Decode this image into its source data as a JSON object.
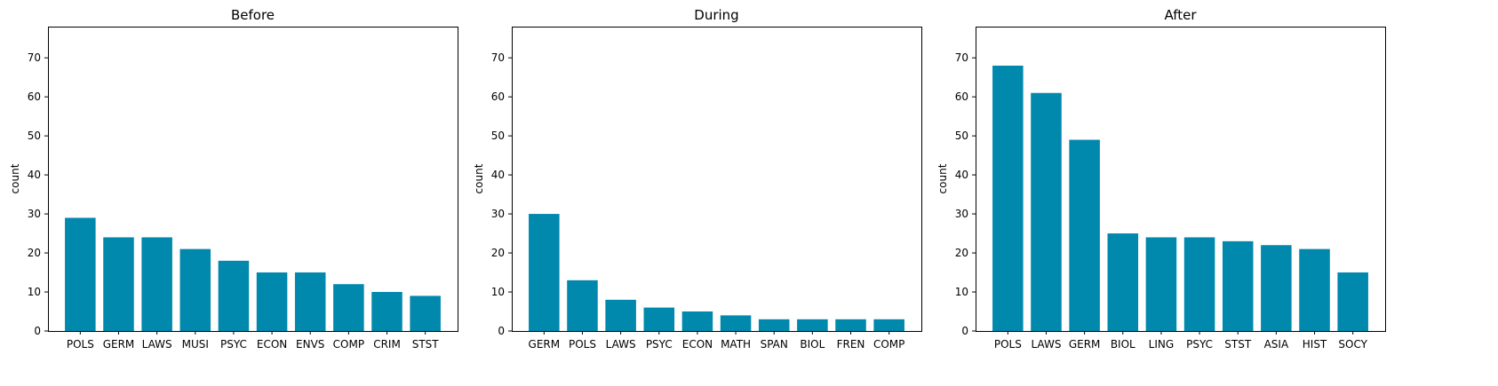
{
  "chart_data": [
    {
      "type": "bar",
      "title": "Before",
      "ylabel": "count",
      "xlabel": "",
      "ylim": [
        0,
        78
      ],
      "yticks": [
        0,
        10,
        20,
        30,
        40,
        50,
        60,
        70
      ],
      "categories": [
        "POLS",
        "GERM",
        "LAWS",
        "MUSI",
        "PSYC",
        "ECON",
        "ENVS",
        "COMP",
        "CRIM",
        "STST"
      ],
      "values": [
        29,
        24,
        24,
        21,
        18,
        15,
        15,
        12,
        10,
        9
      ],
      "color": "#0088ad",
      "grid": false
    },
    {
      "type": "bar",
      "title": "During",
      "ylabel": "count",
      "xlabel": "",
      "ylim": [
        0,
        78
      ],
      "yticks": [
        0,
        10,
        20,
        30,
        40,
        50,
        60,
        70
      ],
      "categories": [
        "GERM",
        "POLS",
        "LAWS",
        "PSYC",
        "ECON",
        "MATH",
        "SPAN",
        "BIOL",
        "FREN",
        "COMP"
      ],
      "values": [
        30,
        13,
        8,
        6,
        5,
        4,
        3,
        3,
        3,
        3
      ],
      "color": "#0088ad",
      "grid": false
    },
    {
      "type": "bar",
      "title": "After",
      "ylabel": "count",
      "xlabel": "",
      "ylim": [
        0,
        78
      ],
      "yticks": [
        0,
        10,
        20,
        30,
        40,
        50,
        60,
        70
      ],
      "categories": [
        "POLS",
        "LAWS",
        "GERM",
        "BIOL",
        "LING",
        "PSYC",
        "STST",
        "ASIA",
        "HIST",
        "SOCY"
      ],
      "values": [
        68,
        61,
        49,
        25,
        24,
        24,
        23,
        22,
        21,
        15
      ],
      "color": "#0088ad",
      "grid": false
    }
  ]
}
